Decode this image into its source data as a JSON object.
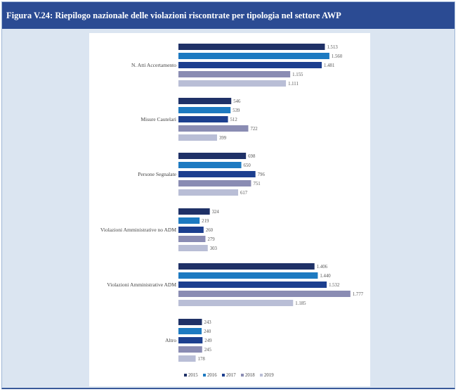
{
  "figure": {
    "title": "Figura V.24: Riepilogo nazionale delle violazioni riscontrate per tipologia nel settore AWP"
  },
  "chart_data": {
    "type": "bar",
    "orientation": "horizontal",
    "title": "",
    "categories": [
      "N. Atti Accertamento",
      "Misure Cautelari",
      "Persone Segnalate",
      "Violazioni Amministrative no ADM",
      "Violazioni Amministrative ADM",
      "Altro"
    ],
    "series": [
      {
        "name": "2015",
        "color": "#1f3167",
        "values": [
          1513,
          546,
          698,
          324,
          1406,
          243
        ],
        "labels": [
          "1.513",
          "546",
          "698",
          "324",
          "1.406",
          "243"
        ]
      },
      {
        "name": "2016",
        "color": "#1d7ac1",
        "values": [
          1560,
          539,
          650,
          219,
          1440,
          240
        ],
        "labels": [
          "1.560",
          "539",
          "650",
          "219",
          "1.440",
          "240"
        ]
      },
      {
        "name": "2017",
        "color": "#1c3f8f",
        "values": [
          1481,
          512,
          796,
          260,
          1532,
          249
        ],
        "labels": [
          "1.481",
          "512",
          "796",
          "260",
          "1.532",
          "249"
        ]
      },
      {
        "name": "2018",
        "color": "#8a8cb3",
        "values": [
          1155,
          722,
          751,
          279,
          1777,
          245
        ],
        "labels": [
          "1.155",
          "722",
          "751",
          "279",
          "1.777",
          "245"
        ]
      },
      {
        "name": "2019",
        "color": "#b9bed6",
        "values": [
          1111,
          399,
          617,
          303,
          1185,
          178
        ],
        "labels": [
          "1.111",
          "399",
          "617",
          "303",
          "1.185",
          "178"
        ]
      }
    ],
    "xlim": [
      0,
      1800
    ],
    "grid": false,
    "legend_position": "bottom"
  }
}
